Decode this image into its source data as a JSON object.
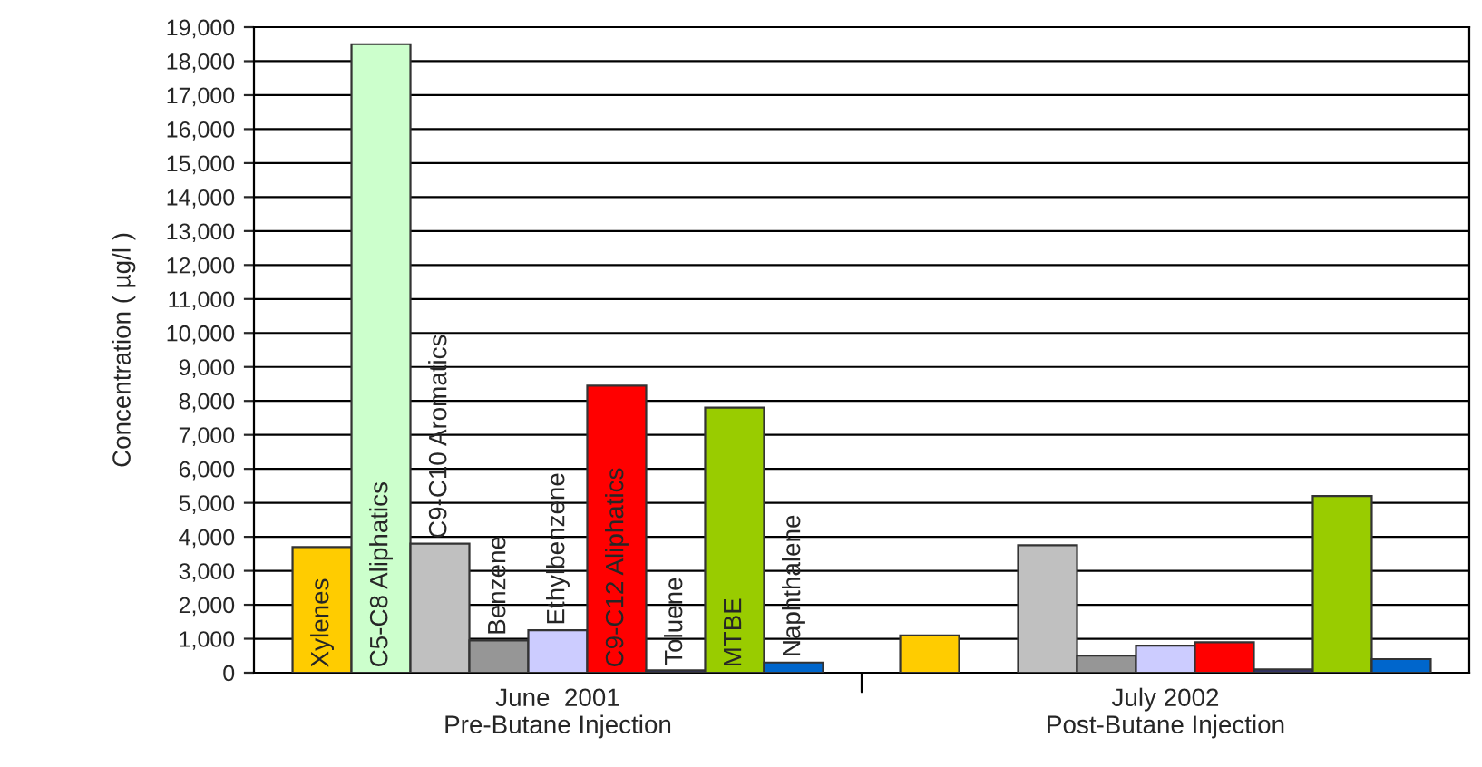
{
  "chart_data": {
    "type": "bar",
    "ylabel": "Concentration ( µg/l )",
    "categories": [
      "June  2001\nPre-Butane Injection",
      "July 2002\nPost-Butane Injection"
    ],
    "series": [
      {
        "name": "Xylenes",
        "color": "#ffcc00",
        "values": [
          3700,
          1100
        ]
      },
      {
        "name": "C5-C8 Aliphatics",
        "color": "#ccffcc",
        "values": [
          18500,
          null
        ]
      },
      {
        "name": "C9-C10 Aromatics",
        "color": "#c0c0c0",
        "values": [
          3800,
          3750
        ]
      },
      {
        "name": "Benzene",
        "color": "#969696",
        "values": [
          950,
          500
        ]
      },
      {
        "name": "Ethylbenzene",
        "color": "#ccccff",
        "values": [
          1250,
          800
        ]
      },
      {
        "name": "C9-C12 Aliphatics",
        "color": "#ff0000",
        "values": [
          8450,
          900
        ]
      },
      {
        "name": "Toluene",
        "color": "#333366",
        "values": [
          70,
          100
        ]
      },
      {
        "name": "MTBE",
        "color": "#99cc00",
        "values": [
          7800,
          5200
        ]
      },
      {
        "name": "Naphthalene",
        "color": "#0066cc",
        "values": [
          300,
          400
        ]
      }
    ],
    "ylim": [
      0,
      19000
    ],
    "yticks": [
      {
        "value": 0,
        "label": "0"
      },
      {
        "value": 1000,
        "label": "1,000"
      },
      {
        "value": 2000,
        "label": "2,000"
      },
      {
        "value": 3000,
        "label": "3,000"
      },
      {
        "value": 4000,
        "label": "4,000"
      },
      {
        "value": 5000,
        "label": "5,000"
      },
      {
        "value": 6000,
        "label": "6,000"
      },
      {
        "value": 7000,
        "label": "7,000"
      },
      {
        "value": 8000,
        "label": "8,000"
      },
      {
        "value": 9000,
        "label": "9,000"
      },
      {
        "value": 10000,
        "label": "10,000"
      },
      {
        "value": 11000,
        "label": "11,000"
      },
      {
        "value": 12000,
        "label": "12,000"
      },
      {
        "value": 13000,
        "label": "13,000"
      },
      {
        "value": 14000,
        "label": "14,000"
      },
      {
        "value": 15000,
        "label": "15,000"
      },
      {
        "value": 16000,
        "label": "16,000"
      },
      {
        "value": 17000,
        "label": "17,000"
      },
      {
        "value": 18000,
        "label": "18,000"
      },
      {
        "value": 19000,
        "label": "19,000"
      }
    ],
    "grid": "y",
    "legend": false
  }
}
